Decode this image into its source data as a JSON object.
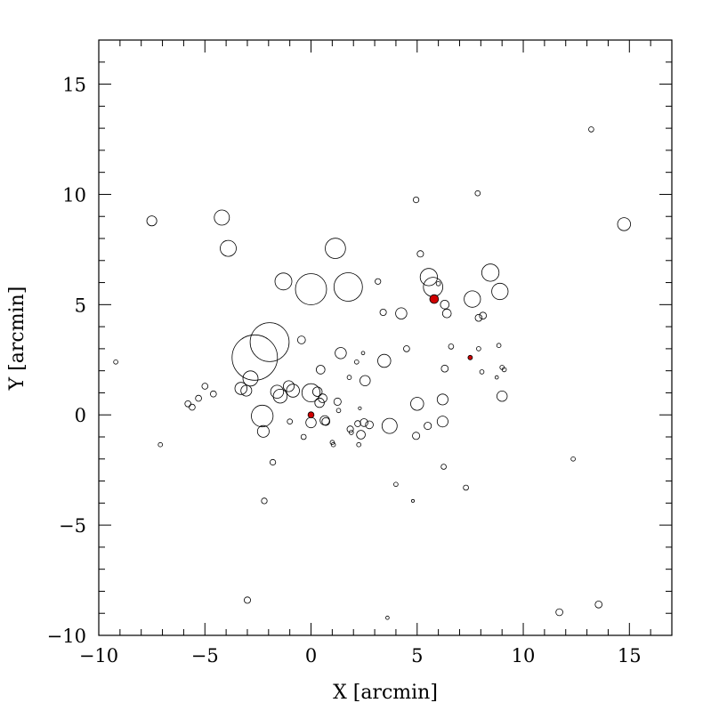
{
  "chart_data": {
    "type": "scatter",
    "xlabel": "X [arcmin]",
    "ylabel": "Y [arcmin]",
    "xlim": [
      -10,
      17
    ],
    "ylim": [
      -10,
      17
    ],
    "xticks": [
      -10,
      -5,
      0,
      5,
      10,
      15
    ],
    "yticks": [
      -10,
      -5,
      0,
      5,
      10,
      15
    ],
    "xtick_labels": [
      "−10",
      "−5",
      "0",
      "5",
      "10",
      "15"
    ],
    "ytick_labels": [
      "−10",
      "−5",
      "0",
      "5",
      "10",
      "15"
    ],
    "minor_step": 1,
    "grid": false,
    "highlight_color": "#d00000",
    "marker_size_unit": "arcmin",
    "points": [
      {
        "x": -9.2,
        "y": 2.4,
        "size": 0.1
      },
      {
        "x": -7.5,
        "y": 8.8,
        "size": 0.23
      },
      {
        "x": -7.1,
        "y": -1.35,
        "size": 0.1
      },
      {
        "x": -5.8,
        "y": 0.5,
        "size": 0.14
      },
      {
        "x": -5.6,
        "y": 0.35,
        "size": 0.14
      },
      {
        "x": -5.3,
        "y": 0.75,
        "size": 0.14
      },
      {
        "x": -5.0,
        "y": 1.3,
        "size": 0.14
      },
      {
        "x": -4.6,
        "y": 0.95,
        "size": 0.14
      },
      {
        "x": -4.2,
        "y": 8.95,
        "size": 0.35
      },
      {
        "x": -3.9,
        "y": 7.55,
        "size": 0.37
      },
      {
        "x": -3.3,
        "y": 1.2,
        "size": 0.28
      },
      {
        "x": -3.05,
        "y": 1.1,
        "size": 0.25
      },
      {
        "x": -2.85,
        "y": 1.65,
        "size": 0.35
      },
      {
        "x": -2.65,
        "y": 2.6,
        "size": 1.05
      },
      {
        "x": -1.95,
        "y": 3.3,
        "size": 0.9
      },
      {
        "x": -2.3,
        "y": -0.05,
        "size": 0.5
      },
      {
        "x": -2.25,
        "y": -0.75,
        "size": 0.27
      },
      {
        "x": -3.0,
        "y": -8.4,
        "size": 0.15
      },
      {
        "x": -2.2,
        "y": -3.9,
        "size": 0.13
      },
      {
        "x": -1.8,
        "y": -2.15,
        "size": 0.13
      },
      {
        "x": -1.6,
        "y": 1.05,
        "size": 0.3
      },
      {
        "x": -1.45,
        "y": 0.85,
        "size": 0.32
      },
      {
        "x": -1.3,
        "y": 6.05,
        "size": 0.39
      },
      {
        "x": -1.05,
        "y": 1.3,
        "size": 0.25
      },
      {
        "x": -0.85,
        "y": 1.1,
        "size": 0.3
      },
      {
        "x": -1.0,
        "y": -0.3,
        "size": 0.12
      },
      {
        "x": -0.45,
        "y": 3.4,
        "size": 0.18
      },
      {
        "x": -0.35,
        "y": -1.0,
        "size": 0.12
      },
      {
        "x": 0.0,
        "y": 5.7,
        "size": 0.72
      },
      {
        "x": 0.0,
        "y": 1.0,
        "size": 0.42
      },
      {
        "x": 0.0,
        "y": -0.35,
        "size": 0.24
      },
      {
        "x": 0.3,
        "y": 1.05,
        "size": 0.22
      },
      {
        "x": 0.45,
        "y": 2.05,
        "size": 0.2
      },
      {
        "x": 0.4,
        "y": 0.55,
        "size": 0.22
      },
      {
        "x": 0.55,
        "y": 0.75,
        "size": 0.2
      },
      {
        "x": 0.65,
        "y": -0.25,
        "size": 0.22
      },
      {
        "x": 0.7,
        "y": -0.3,
        "size": 0.18
      },
      {
        "x": 1.0,
        "y": -1.25,
        "size": 0.1
      },
      {
        "x": 1.05,
        "y": -1.35,
        "size": 0.1
      },
      {
        "x": 1.15,
        "y": 7.55,
        "size": 0.47
      },
      {
        "x": 1.25,
        "y": 0.6,
        "size": 0.17
      },
      {
        "x": 1.3,
        "y": 0.2,
        "size": 0.1
      },
      {
        "x": 1.4,
        "y": 2.8,
        "size": 0.26
      },
      {
        "x": 1.75,
        "y": 5.8,
        "size": 0.66
      },
      {
        "x": 1.8,
        "y": 1.7,
        "size": 0.1
      },
      {
        "x": 1.85,
        "y": -0.65,
        "size": 0.15
      },
      {
        "x": 1.9,
        "y": -0.8,
        "size": 0.1
      },
      {
        "x": 2.15,
        "y": 2.4,
        "size": 0.1
      },
      {
        "x": 2.2,
        "y": -0.4,
        "size": 0.14
      },
      {
        "x": 2.25,
        "y": -1.35,
        "size": 0.1
      },
      {
        "x": 2.3,
        "y": 0.3,
        "size": 0.07
      },
      {
        "x": 2.35,
        "y": -0.9,
        "size": 0.2
      },
      {
        "x": 2.45,
        "y": 2.8,
        "size": 0.08
      },
      {
        "x": 2.5,
        "y": -0.35,
        "size": 0.18
      },
      {
        "x": 2.55,
        "y": 1.55,
        "size": 0.24
      },
      {
        "x": 2.75,
        "y": -0.45,
        "size": 0.18
      },
      {
        "x": 3.15,
        "y": 6.05,
        "size": 0.13
      },
      {
        "x": 3.4,
        "y": 4.65,
        "size": 0.15
      },
      {
        "x": 3.45,
        "y": 2.45,
        "size": 0.3
      },
      {
        "x": 3.7,
        "y": -0.5,
        "size": 0.35
      },
      {
        "x": 3.6,
        "y": -9.2,
        "size": 0.08
      },
      {
        "x": 4.0,
        "y": -3.15,
        "size": 0.1
      },
      {
        "x": 4.25,
        "y": 4.6,
        "size": 0.26
      },
      {
        "x": 4.5,
        "y": 3.0,
        "size": 0.14
      },
      {
        "x": 4.8,
        "y": -3.9,
        "size": 0.06
      },
      {
        "x": 4.95,
        "y": 9.75,
        "size": 0.13
      },
      {
        "x": 4.95,
        "y": -0.95,
        "size": 0.17
      },
      {
        "x": 5.0,
        "y": 0.5,
        "size": 0.3
      },
      {
        "x": 5.15,
        "y": 7.3,
        "size": 0.15
      },
      {
        "x": 5.5,
        "y": -0.5,
        "size": 0.17
      },
      {
        "x": 5.55,
        "y": 6.25,
        "size": 0.4
      },
      {
        "x": 5.75,
        "y": 5.8,
        "size": 0.45
      },
      {
        "x": 6.0,
        "y": 5.95,
        "size": 0.1
      },
      {
        "x": 6.2,
        "y": 0.7,
        "size": 0.25
      },
      {
        "x": 6.2,
        "y": -0.3,
        "size": 0.25
      },
      {
        "x": 6.25,
        "y": -2.35,
        "size": 0.12
      },
      {
        "x": 6.3,
        "y": 2.1,
        "size": 0.16
      },
      {
        "x": 6.3,
        "y": 5.0,
        "size": 0.2
      },
      {
        "x": 6.4,
        "y": 4.6,
        "size": 0.2
      },
      {
        "x": 6.6,
        "y": 3.1,
        "size": 0.12
      },
      {
        "x": 7.3,
        "y": -3.3,
        "size": 0.12
      },
      {
        "x": 7.6,
        "y": 5.25,
        "size": 0.38
      },
      {
        "x": 7.9,
        "y": 4.4,
        "size": 0.16
      },
      {
        "x": 7.9,
        "y": 3.0,
        "size": 0.1
      },
      {
        "x": 8.05,
        "y": 1.95,
        "size": 0.1
      },
      {
        "x": 8.1,
        "y": 4.5,
        "size": 0.16
      },
      {
        "x": 7.85,
        "y": 10.05,
        "size": 0.12
      },
      {
        "x": 8.45,
        "y": 6.45,
        "size": 0.4
      },
      {
        "x": 8.9,
        "y": 5.6,
        "size": 0.38
      },
      {
        "x": 8.75,
        "y": 1.7,
        "size": 0.08
      },
      {
        "x": 8.85,
        "y": 3.15,
        "size": 0.1
      },
      {
        "x": 9.0,
        "y": 2.15,
        "size": 0.1
      },
      {
        "x": 9.1,
        "y": 2.05,
        "size": 0.1
      },
      {
        "x": 9.0,
        "y": 0.85,
        "size": 0.24
      },
      {
        "x": 11.7,
        "y": -8.95,
        "size": 0.16
      },
      {
        "x": 12.35,
        "y": -2.0,
        "size": 0.1
      },
      {
        "x": 13.2,
        "y": 12.95,
        "size": 0.12
      },
      {
        "x": 13.55,
        "y": -8.6,
        "size": 0.16
      },
      {
        "x": 14.75,
        "y": 8.65,
        "size": 0.3
      }
    ],
    "highlighted_points": [
      {
        "x": 0.0,
        "y": 0.0,
        "size": 0.14
      },
      {
        "x": 5.8,
        "y": 5.25,
        "size": 0.2
      },
      {
        "x": 7.5,
        "y": 2.6,
        "size": 0.07
      }
    ]
  }
}
